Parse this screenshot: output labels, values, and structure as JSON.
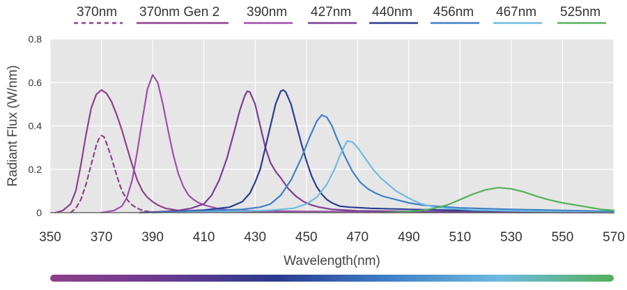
{
  "chart_data": {
    "type": "line",
    "xlabel": "Wavelength(nm)",
    "ylabel": "Radiant Flux (W/nm)",
    "xlim": [
      350,
      570
    ],
    "ylim": [
      0,
      0.8
    ],
    "x_ticks": [
      "350",
      "370",
      "390",
      "410",
      "430",
      "450",
      "470",
      "490",
      "510",
      "530",
      "550",
      "570"
    ],
    "y_ticks": [
      "0",
      "0.2",
      "0.4",
      "0.6",
      "0.8"
    ],
    "grid": true,
    "legend_position": "top",
    "plot_background": "#e6e6e6",
    "grid_color": "#ffffff",
    "spectrum_bar_colors": [
      "#8e3f8a",
      "#6a3a90",
      "#2a3a8f",
      "#3f7fc6",
      "#6dbbe0",
      "#54b05b"
    ],
    "series": [
      {
        "name": "370nm",
        "color": "#8e3f8a",
        "dashed": true,
        "points": [
          [
            358,
            0
          ],
          [
            360,
            0.02
          ],
          [
            362,
            0.06
          ],
          [
            364,
            0.13
          ],
          [
            366,
            0.22
          ],
          [
            368,
            0.31
          ],
          [
            369,
            0.34
          ],
          [
            370,
            0.355
          ],
          [
            371,
            0.35
          ],
          [
            372,
            0.32
          ],
          [
            374,
            0.25
          ],
          [
            376,
            0.17
          ],
          [
            378,
            0.1
          ],
          [
            380,
            0.06
          ],
          [
            382,
            0.035
          ],
          [
            384,
            0.02
          ],
          [
            386,
            0.01
          ],
          [
            388,
            0.005
          ],
          [
            390,
            0.002
          ],
          [
            392,
            0
          ]
        ]
      },
      {
        "name": "370nm Gen 2",
        "color": "#8e3f8a",
        "dashed": false,
        "points": [
          [
            352,
            0
          ],
          [
            355,
            0.01
          ],
          [
            358,
            0.04
          ],
          [
            360,
            0.1
          ],
          [
            362,
            0.22
          ],
          [
            364,
            0.36
          ],
          [
            366,
            0.48
          ],
          [
            368,
            0.545
          ],
          [
            370,
            0.565
          ],
          [
            372,
            0.55
          ],
          [
            374,
            0.51
          ],
          [
            376,
            0.45
          ],
          [
            378,
            0.38
          ],
          [
            380,
            0.3
          ],
          [
            382,
            0.22
          ],
          [
            384,
            0.15
          ],
          [
            386,
            0.1
          ],
          [
            388,
            0.07
          ],
          [
            390,
            0.05
          ],
          [
            392,
            0.035
          ],
          [
            395,
            0.02
          ],
          [
            400,
            0.01
          ],
          [
            410,
            0.005
          ],
          [
            430,
            0.002
          ],
          [
            570,
            0
          ]
        ]
      },
      {
        "name": "390nm",
        "color": "#9c4fa8",
        "dashed": false,
        "points": [
          [
            370,
            0
          ],
          [
            375,
            0.01
          ],
          [
            378,
            0.03
          ],
          [
            380,
            0.07
          ],
          [
            382,
            0.15
          ],
          [
            384,
            0.28
          ],
          [
            386,
            0.43
          ],
          [
            388,
            0.57
          ],
          [
            390,
            0.635
          ],
          [
            392,
            0.6
          ],
          [
            394,
            0.5
          ],
          [
            396,
            0.38
          ],
          [
            398,
            0.27
          ],
          [
            400,
            0.18
          ],
          [
            402,
            0.12
          ],
          [
            404,
            0.08
          ],
          [
            406,
            0.06
          ],
          [
            408,
            0.045
          ],
          [
            410,
            0.035
          ],
          [
            415,
            0.02
          ],
          [
            420,
            0.012
          ],
          [
            430,
            0.008
          ],
          [
            450,
            0.005
          ],
          [
            570,
            0
          ]
        ]
      },
      {
        "name": "427nm",
        "color": "#7a3d95",
        "dashed": false,
        "points": [
          [
            385,
            0
          ],
          [
            395,
            0.005
          ],
          [
            400,
            0.01
          ],
          [
            405,
            0.02
          ],
          [
            410,
            0.04
          ],
          [
            413,
            0.08
          ],
          [
            416,
            0.15
          ],
          [
            419,
            0.25
          ],
          [
            422,
            0.38
          ],
          [
            424,
            0.47
          ],
          [
            426,
            0.54
          ],
          [
            427,
            0.56
          ],
          [
            428,
            0.555
          ],
          [
            430,
            0.5
          ],
          [
            432,
            0.4
          ],
          [
            434,
            0.3
          ],
          [
            436,
            0.23
          ],
          [
            438,
            0.19
          ],
          [
            440,
            0.16
          ],
          [
            443,
            0.11
          ],
          [
            446,
            0.075
          ],
          [
            449,
            0.05
          ],
          [
            452,
            0.035
          ],
          [
            455,
            0.025
          ],
          [
            460,
            0.015
          ],
          [
            470,
            0.008
          ],
          [
            490,
            0.005
          ],
          [
            570,
            0
          ]
        ]
      },
      {
        "name": "440nm",
        "color": "#2a3a8f",
        "dashed": false,
        "points": [
          [
            385,
            0
          ],
          [
            400,
            0.005
          ],
          [
            410,
            0.012
          ],
          [
            420,
            0.025
          ],
          [
            425,
            0.05
          ],
          [
            428,
            0.09
          ],
          [
            430,
            0.14
          ],
          [
            432,
            0.2
          ],
          [
            434,
            0.3
          ],
          [
            436,
            0.4
          ],
          [
            438,
            0.5
          ],
          [
            440,
            0.56
          ],
          [
            441,
            0.565
          ],
          [
            442,
            0.555
          ],
          [
            444,
            0.5
          ],
          [
            446,
            0.41
          ],
          [
            448,
            0.32
          ],
          [
            450,
            0.24
          ],
          [
            452,
            0.17
          ],
          [
            454,
            0.12
          ],
          [
            456,
            0.085
          ],
          [
            458,
            0.06
          ],
          [
            460,
            0.045
          ],
          [
            463,
            0.03
          ],
          [
            467,
            0.025
          ],
          [
            475,
            0.02
          ],
          [
            490,
            0.015
          ],
          [
            510,
            0.01
          ],
          [
            570,
            0
          ]
        ]
      },
      {
        "name": "456nm",
        "color": "#3f7fc6",
        "dashed": false,
        "points": [
          [
            390,
            0
          ],
          [
            410,
            0.008
          ],
          [
            425,
            0.015
          ],
          [
            432,
            0.025
          ],
          [
            436,
            0.04
          ],
          [
            440,
            0.08
          ],
          [
            444,
            0.15
          ],
          [
            448,
            0.25
          ],
          [
            451,
            0.34
          ],
          [
            454,
            0.42
          ],
          [
            456,
            0.45
          ],
          [
            458,
            0.44
          ],
          [
            460,
            0.4
          ],
          [
            462,
            0.34
          ],
          [
            465,
            0.26
          ],
          [
            468,
            0.19
          ],
          [
            471,
            0.14
          ],
          [
            474,
            0.11
          ],
          [
            477,
            0.09
          ],
          [
            480,
            0.075
          ],
          [
            485,
            0.06
          ],
          [
            490,
            0.045
          ],
          [
            495,
            0.035
          ],
          [
            500,
            0.03
          ],
          [
            510,
            0.022
          ],
          [
            530,
            0.015
          ],
          [
            550,
            0.01
          ],
          [
            570,
            0.005
          ]
        ]
      },
      {
        "name": "467nm",
        "color": "#6dbbe0",
        "dashed": false,
        "points": [
          [
            400,
            0
          ],
          [
            420,
            0.005
          ],
          [
            435,
            0.01
          ],
          [
            445,
            0.02
          ],
          [
            450,
            0.04
          ],
          [
            454,
            0.07
          ],
          [
            458,
            0.13
          ],
          [
            461,
            0.2
          ],
          [
            463,
            0.26
          ],
          [
            465,
            0.31
          ],
          [
            466,
            0.33
          ],
          [
            468,
            0.325
          ],
          [
            470,
            0.3
          ],
          [
            473,
            0.25
          ],
          [
            476,
            0.2
          ],
          [
            479,
            0.16
          ],
          [
            482,
            0.13
          ],
          [
            485,
            0.1
          ],
          [
            488,
            0.08
          ],
          [
            491,
            0.06
          ],
          [
            495,
            0.04
          ],
          [
            500,
            0.025
          ],
          [
            505,
            0.02
          ],
          [
            515,
            0.012
          ],
          [
            530,
            0.008
          ],
          [
            570,
            0
          ]
        ]
      },
      {
        "name": "525nm",
        "color": "#54b05b",
        "dashed": false,
        "points": [
          [
            480,
            0
          ],
          [
            490,
            0.005
          ],
          [
            495,
            0.01
          ],
          [
            500,
            0.02
          ],
          [
            505,
            0.035
          ],
          [
            510,
            0.06
          ],
          [
            515,
            0.085
          ],
          [
            520,
            0.105
          ],
          [
            525,
            0.115
          ],
          [
            530,
            0.11
          ],
          [
            535,
            0.095
          ],
          [
            540,
            0.075
          ],
          [
            545,
            0.058
          ],
          [
            550,
            0.045
          ],
          [
            555,
            0.035
          ],
          [
            560,
            0.025
          ],
          [
            565,
            0.015
          ],
          [
            570,
            0.01
          ]
        ]
      }
    ]
  }
}
